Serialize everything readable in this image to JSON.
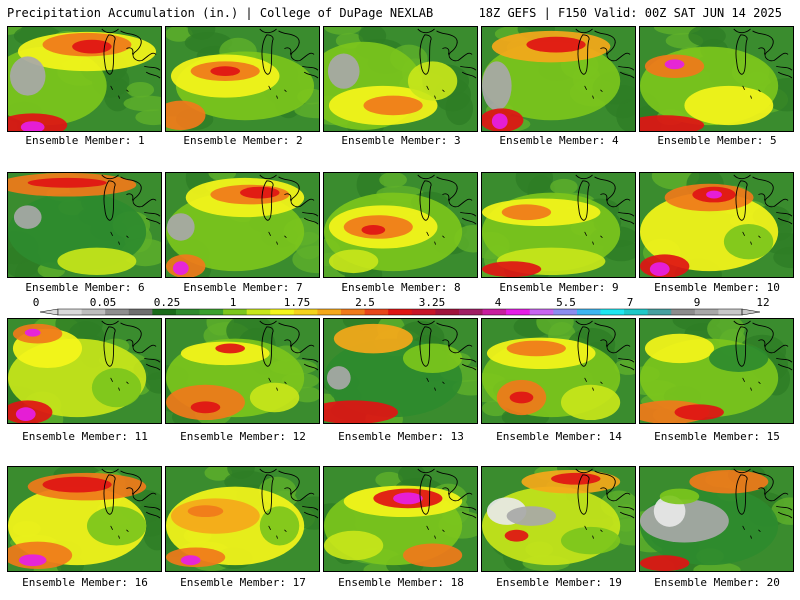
{
  "header": {
    "title": "Precipitation Accumulation (in.) | College of DuPage NEXLAB",
    "valid": "18Z GEFS | F150 Valid: 00Z SAT JUN 14 2025"
  },
  "colorbar": {
    "tick_labels": [
      "0",
      "0.05",
      "0.25",
      "1",
      "1.75",
      "2.5",
      "3.25",
      "4",
      "5.5",
      "7",
      "9",
      "12"
    ],
    "colors": [
      "#d9d9d9",
      "#bdbdbd",
      "#8e8e8e",
      "#6e6e6e",
      "#1a6b1a",
      "#2e8b2e",
      "#3aa02e",
      "#7cc61c",
      "#c8e61a",
      "#f5f51a",
      "#f5d21a",
      "#f5a81a",
      "#f07a1a",
      "#e8461a",
      "#e01414",
      "#c81428",
      "#a0143c",
      "#a01e64",
      "#c81e9e",
      "#e61ee6",
      "#c864f0",
      "#8c8cf0",
      "#3cb4f0",
      "#1ee6f0",
      "#1ec8c8",
      "#46a0a0",
      "#8c8c8c",
      "#a8a8a8",
      "#c8c8c8"
    ]
  },
  "panels": [
    {
      "label": "Ensemble Member: 1"
    },
    {
      "label": "Ensemble Member: 2"
    },
    {
      "label": "Ensemble Member: 3"
    },
    {
      "label": "Ensemble Member: 4"
    },
    {
      "label": "Ensemble Member: 5"
    },
    {
      "label": "Ensemble Member: 6"
    },
    {
      "label": "Ensemble Member: 7"
    },
    {
      "label": "Ensemble Member: 8"
    },
    {
      "label": "Ensemble Member: 9"
    },
    {
      "label": "Ensemble Member: 10"
    },
    {
      "label": "Ensemble Member: 11"
    },
    {
      "label": "Ensemble Member: 12"
    },
    {
      "label": "Ensemble Member: 13"
    },
    {
      "label": "Ensemble Member: 14"
    },
    {
      "label": "Ensemble Member: 15"
    },
    {
      "label": "Ensemble Member: 16"
    },
    {
      "label": "Ensemble Member: 17"
    },
    {
      "label": "Ensemble Member: 18"
    },
    {
      "label": "Ensemble Member: 19"
    },
    {
      "label": "Ensemble Member: 20"
    }
  ]
}
